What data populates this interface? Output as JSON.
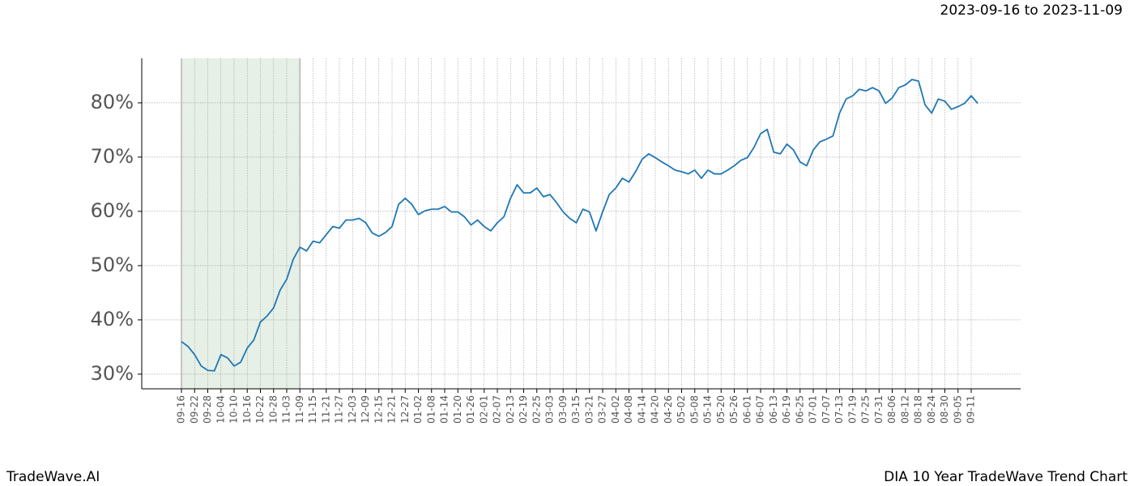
{
  "chart_data": {
    "type": "line",
    "subtitle": "2023-09-16 to 2023-11-09",
    "footer_left": "TradeWave.AI",
    "footer_right": "DIA 10 Year TradeWave Trend Chart",
    "categories": [
      "09-16",
      null,
      "09-22",
      null,
      "09-28",
      null,
      "10-04",
      null,
      "10-10",
      null,
      "10-16",
      null,
      "10-22",
      null,
      "10-28",
      null,
      "11-03",
      null,
      "11-09",
      null,
      "11-15",
      null,
      "11-21",
      null,
      "11-27",
      null,
      "12-03",
      null,
      "12-09",
      null,
      "12-15",
      null,
      "12-21",
      null,
      "12-27",
      null,
      "01-02",
      null,
      "01-08",
      null,
      "01-14",
      null,
      "01-20",
      null,
      "01-26",
      null,
      "02-01",
      null,
      "02-07",
      null,
      "02-13",
      null,
      "02-19",
      null,
      "02-25",
      null,
      "03-03",
      null,
      "03-09",
      null,
      "03-15",
      null,
      "03-21",
      null,
      "03-27",
      null,
      "04-02",
      null,
      "04-08",
      null,
      "04-14",
      null,
      "04-20",
      null,
      "04-26",
      null,
      "05-02",
      null,
      "05-08",
      null,
      "05-14",
      null,
      "05-20",
      null,
      "05-26",
      null,
      "06-01",
      null,
      "06-07",
      null,
      "06-13",
      null,
      "06-19",
      null,
      "06-25",
      null,
      "07-01",
      null,
      "07-07",
      null,
      "07-13",
      null,
      "07-19",
      null,
      "07-25",
      null,
      "07-31",
      null,
      "08-06",
      null,
      "08-12",
      null,
      "08-18",
      null,
      "08-24",
      null,
      "08-30",
      null,
      "09-05",
      null,
      "09-11",
      null
    ],
    "series": [
      {
        "color": "#1f77b4",
        "values": [
          36.0,
          35.1,
          33.6,
          31.5,
          30.7,
          30.6,
          33.6,
          33.0,
          31.5,
          32.2,
          34.8,
          36.3,
          39.6,
          40.7,
          42.2,
          45.5,
          47.5,
          51.2,
          53.4,
          52.7,
          54.5,
          54.2,
          55.7,
          57.2,
          56.9,
          58.4,
          58.4,
          58.7,
          57.9,
          56.0,
          55.4,
          56.1,
          57.2,
          61.3,
          62.4,
          61.3,
          59.4,
          60.1,
          60.4,
          60.4,
          60.9,
          59.9,
          59.9,
          59.0,
          57.5,
          58.4,
          57.2,
          56.4,
          57.9,
          59.0,
          62.4,
          64.9,
          63.4,
          63.4,
          64.3,
          62.7,
          63.1,
          61.6,
          59.9,
          58.7,
          57.9,
          60.4,
          59.9,
          56.4,
          59.9,
          63.1,
          64.3,
          66.1,
          65.4,
          67.3,
          69.6,
          70.6,
          69.9,
          69.1,
          68.4,
          67.6,
          67.3,
          66.9,
          67.6,
          66.1,
          67.6,
          66.9,
          66.9,
          67.6,
          68.4,
          69.4,
          69.9,
          71.8,
          74.3,
          75.1,
          70.9,
          70.6,
          72.4,
          71.3,
          69.1,
          68.4,
          71.3,
          72.8,
          73.3,
          73.9,
          78.1,
          80.7,
          81.3,
          82.5,
          82.2,
          82.8,
          82.2,
          79.9,
          80.9,
          82.8,
          83.3,
          84.3,
          84.0,
          79.6,
          78.1,
          80.7,
          80.3,
          78.8,
          79.3,
          79.9,
          81.3,
          79.9
        ]
      }
    ],
    "highlight": {
      "from": "09-16",
      "to": "11-09",
      "color": "#e6f0e6"
    },
    "ylim": [
      27.3,
      88.2
    ],
    "yticks": [
      {
        "value": 30,
        "label": "30%"
      },
      {
        "value": 40,
        "label": "40%"
      },
      {
        "value": 50,
        "label": "50%"
      },
      {
        "value": 60,
        "label": "60%"
      },
      {
        "value": 70,
        "label": "70%"
      },
      {
        "value": 80,
        "label": "80%"
      }
    ],
    "grid": true
  }
}
